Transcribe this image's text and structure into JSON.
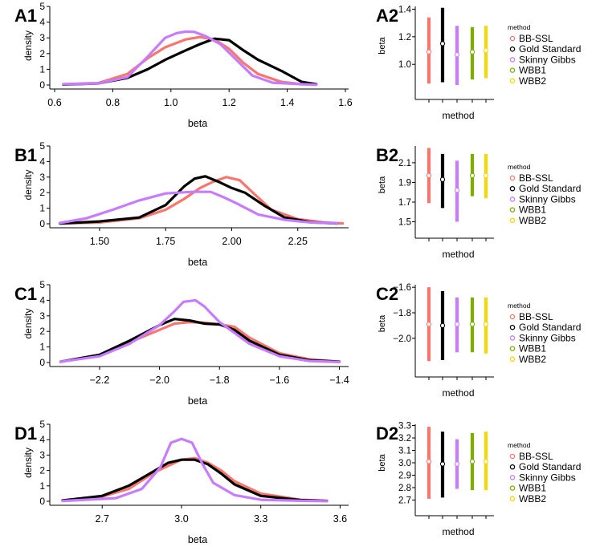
{
  "colors": {
    "BB-SSL": "#F8766D",
    "Gold Standard": "#000000",
    "Skinny Gibbs": "#C77CFF",
    "WBB1": "#7CAE00",
    "WBB2": "#F5D800"
  },
  "legend": {
    "title": "method",
    "entries": [
      "BB-SSL",
      "Gold Standard",
      "Skinny Gibbs",
      "WBB1",
      "WBB2"
    ]
  },
  "chart_data": [
    {
      "panel": "A1",
      "type": "line",
      "xlabel": "beta",
      "ylabel": "density",
      "xlim": [
        0.6,
        1.6
      ],
      "ylim": [
        0,
        5
      ],
      "xticks": [
        "0.6",
        "0.8",
        "1.0",
        "1.2",
        "1.4",
        "1.6"
      ],
      "yticks": [
        "0",
        "1",
        "2",
        "3",
        "4",
        "5"
      ],
      "series": [
        {
          "method": "BB-SSL",
          "x": [
            0.63,
            0.75,
            0.85,
            0.92,
            0.98,
            1.05,
            1.1,
            1.15,
            1.2,
            1.25,
            1.3,
            1.38,
            1.45,
            1.5
          ],
          "y": [
            0.05,
            0.12,
            0.7,
            1.7,
            2.4,
            2.9,
            3.05,
            2.9,
            2.3,
            1.4,
            0.7,
            0.2,
            0.05,
            0.02
          ]
        },
        {
          "method": "Gold Standard",
          "x": [
            0.63,
            0.75,
            0.85,
            0.92,
            0.98,
            1.05,
            1.1,
            1.15,
            1.2,
            1.25,
            1.3,
            1.38,
            1.45,
            1.5
          ],
          "y": [
            0.03,
            0.1,
            0.45,
            1.0,
            1.6,
            2.2,
            2.6,
            2.95,
            2.85,
            2.2,
            1.6,
            0.9,
            0.2,
            0.05
          ]
        },
        {
          "method": "Skinny Gibbs",
          "x": [
            0.63,
            0.75,
            0.85,
            0.92,
            0.98,
            1.02,
            1.05,
            1.08,
            1.12,
            1.17,
            1.22,
            1.28,
            1.35,
            1.45,
            1.5
          ],
          "y": [
            0.05,
            0.1,
            0.5,
            1.8,
            3.0,
            3.3,
            3.4,
            3.38,
            3.1,
            2.6,
            1.7,
            0.6,
            0.15,
            0.05,
            0.02
          ]
        }
      ]
    },
    {
      "panel": "A2",
      "type": "scatter",
      "xlabel": "method",
      "ylabel": "beta",
      "ylim": [
        0.85,
        1.42
      ],
      "yticks": [
        "1.0",
        "1.2",
        "1.4"
      ],
      "ytick_values": [
        1.0,
        1.2,
        1.4
      ],
      "intervals": [
        {
          "method": "BB-SSL",
          "lo": 0.86,
          "hi": 1.34,
          "mid": 1.09
        },
        {
          "method": "Gold Standard",
          "lo": 0.87,
          "hi": 1.41,
          "mid": 1.15
        },
        {
          "method": "Skinny Gibbs",
          "lo": 0.85,
          "hi": 1.28,
          "mid": 1.07
        },
        {
          "method": "WBB1",
          "lo": 0.89,
          "hi": 1.27,
          "mid": 1.09
        },
        {
          "method": "WBB2",
          "lo": 0.9,
          "hi": 1.28,
          "mid": 1.1
        }
      ]
    },
    {
      "panel": "B1",
      "type": "line",
      "xlabel": "beta",
      "ylabel": "density",
      "xlim": [
        1.33,
        2.43
      ],
      "ylim": [
        0,
        5
      ],
      "xticks": [
        "1.50",
        "1.75",
        "2.00",
        "2.25"
      ],
      "xtick_values": [
        1.5,
        1.75,
        2.0,
        2.25
      ],
      "yticks": [
        "0",
        "1",
        "2",
        "3",
        "4",
        "5"
      ],
      "series": [
        {
          "method": "BB-SSL",
          "x": [
            1.35,
            1.5,
            1.65,
            1.75,
            1.82,
            1.88,
            1.93,
            1.98,
            2.03,
            2.08,
            2.15,
            2.25,
            2.35,
            2.42
          ],
          "y": [
            0.02,
            0.08,
            0.35,
            0.9,
            1.6,
            2.3,
            2.7,
            3.0,
            2.8,
            2.0,
            0.9,
            0.3,
            0.08,
            0.02
          ]
        },
        {
          "method": "Gold Standard",
          "x": [
            1.35,
            1.5,
            1.65,
            1.75,
            1.82,
            1.86,
            1.9,
            1.95,
            2.0,
            2.05,
            2.12,
            2.2,
            2.3,
            2.4
          ],
          "y": [
            0.02,
            0.15,
            0.4,
            1.2,
            2.4,
            2.9,
            3.05,
            2.7,
            2.3,
            2.0,
            1.2,
            0.4,
            0.1,
            0.02
          ]
        },
        {
          "method": "Skinny Gibbs",
          "x": [
            1.35,
            1.45,
            1.55,
            1.65,
            1.75,
            1.85,
            1.92,
            1.97,
            2.02,
            2.1,
            2.2,
            2.3,
            2.4
          ],
          "y": [
            0.05,
            0.35,
            0.9,
            1.5,
            1.95,
            2.05,
            2.05,
            1.7,
            1.3,
            0.6,
            0.25,
            0.08,
            0.03
          ]
        }
      ]
    },
    {
      "panel": "B2",
      "type": "scatter",
      "xlabel": "method",
      "ylabel": "beta",
      "ylim": [
        1.48,
        2.27
      ],
      "yticks": [
        "1.5",
        "1.7",
        "1.9",
        "2.1"
      ],
      "ytick_values": [
        1.5,
        1.7,
        1.9,
        2.1
      ],
      "intervals": [
        {
          "method": "BB-SSL",
          "lo": 1.69,
          "hi": 2.25,
          "mid": 1.97
        },
        {
          "method": "Gold Standard",
          "lo": 1.64,
          "hi": 2.19,
          "mid": 1.93
        },
        {
          "method": "Skinny Gibbs",
          "lo": 1.5,
          "hi": 2.12,
          "mid": 1.82
        },
        {
          "method": "WBB1",
          "lo": 1.76,
          "hi": 2.19,
          "mid": 1.97
        },
        {
          "method": "WBB2",
          "lo": 1.74,
          "hi": 2.19,
          "mid": 1.97
        }
      ]
    },
    {
      "panel": "C1",
      "type": "line",
      "xlabel": "beta",
      "ylabel": "density",
      "xlim": [
        -2.35,
        -1.38
      ],
      "ylim": [
        0,
        5
      ],
      "xticks": [
        "−2.2",
        "−2.0",
        "−1.8",
        "−1.6",
        "−1.4"
      ],
      "xtick_values": [
        -2.2,
        -2.0,
        -1.8,
        -1.6,
        -1.4
      ],
      "yticks": [
        "0",
        "1",
        "2",
        "3",
        "4",
        "5"
      ],
      "series": [
        {
          "method": "BB-SSL",
          "x": [
            -2.33,
            -2.2,
            -2.1,
            -2.0,
            -1.95,
            -1.9,
            -1.85,
            -1.8,
            -1.75,
            -1.7,
            -1.6,
            -1.5,
            -1.4
          ],
          "y": [
            0.05,
            0.45,
            1.3,
            2.1,
            2.5,
            2.6,
            2.55,
            2.45,
            2.3,
            1.6,
            0.6,
            0.2,
            0.05
          ]
        },
        {
          "method": "Gold Standard",
          "x": [
            -2.33,
            -2.2,
            -2.1,
            -2.0,
            -1.95,
            -1.9,
            -1.85,
            -1.8,
            -1.75,
            -1.7,
            -1.6,
            -1.5,
            -1.4
          ],
          "y": [
            0.05,
            0.5,
            1.4,
            2.4,
            2.8,
            2.7,
            2.5,
            2.45,
            2.1,
            1.4,
            0.5,
            0.15,
            0.05
          ]
        },
        {
          "method": "Skinny Gibbs",
          "x": [
            -2.33,
            -2.2,
            -2.1,
            -2.0,
            -1.95,
            -1.92,
            -1.88,
            -1.85,
            -1.8,
            -1.75,
            -1.7,
            -1.6,
            -1.5,
            -1.4
          ],
          "y": [
            0.05,
            0.4,
            1.2,
            2.4,
            3.3,
            3.9,
            4.0,
            3.6,
            2.6,
            1.9,
            1.2,
            0.4,
            0.1,
            0.03
          ]
        }
      ]
    },
    {
      "panel": "C2",
      "type": "scatter",
      "xlabel": "method",
      "ylabel": "beta",
      "ylim": [
        -2.19,
        -1.58
      ],
      "yticks": [
        "−2.0",
        "−1.8",
        "−1.6"
      ],
      "ytick_values": [
        -2.0,
        -1.8,
        -1.6
      ],
      "intervals": [
        {
          "method": "BB-SSL",
          "lo": -2.18,
          "hi": -1.6,
          "mid": -1.89
        },
        {
          "method": "Gold Standard",
          "lo": -2.17,
          "hi": -1.63,
          "mid": -1.9
        },
        {
          "method": "Skinny Gibbs",
          "lo": -2.11,
          "hi": -1.68,
          "mid": -1.89
        },
        {
          "method": "WBB1",
          "lo": -2.11,
          "hi": -1.68,
          "mid": -1.89
        },
        {
          "method": "WBB2",
          "lo": -2.12,
          "hi": -1.68,
          "mid": -1.89
        }
      ]
    },
    {
      "panel": "D1",
      "type": "line",
      "xlabel": "beta",
      "ylabel": "density",
      "xlim": [
        2.52,
        3.62
      ],
      "ylim": [
        0,
        5
      ],
      "xticks": [
        "2.7",
        "3.0",
        "3.3",
        "3.6"
      ],
      "xtick_values": [
        2.7,
        3.0,
        3.3,
        3.6
      ],
      "yticks": [
        "0",
        "1",
        "2",
        "3",
        "4",
        "5"
      ],
      "series": [
        {
          "method": "BB-SSL",
          "x": [
            2.55,
            2.7,
            2.8,
            2.9,
            2.95,
            3.0,
            3.05,
            3.1,
            3.15,
            3.2,
            3.3,
            3.45,
            3.55
          ],
          "y": [
            0.05,
            0.3,
            0.8,
            1.9,
            2.3,
            2.7,
            2.8,
            2.5,
            2.0,
            1.3,
            0.5,
            0.1,
            0.03
          ]
        },
        {
          "method": "Gold Standard",
          "x": [
            2.55,
            2.7,
            2.8,
            2.9,
            2.95,
            3.0,
            3.05,
            3.1,
            3.15,
            3.2,
            3.3,
            3.45,
            3.55
          ],
          "y": [
            0.05,
            0.35,
            1.0,
            2.0,
            2.5,
            2.7,
            2.7,
            2.4,
            1.8,
            1.1,
            0.35,
            0.08,
            0.02
          ]
        },
        {
          "method": "Skinny Gibbs",
          "x": [
            2.55,
            2.75,
            2.85,
            2.92,
            2.96,
            3.0,
            3.04,
            3.08,
            3.12,
            3.2,
            3.3,
            3.45,
            3.55
          ],
          "y": [
            0.02,
            0.2,
            0.8,
            2.2,
            3.8,
            4.05,
            3.8,
            2.4,
            1.2,
            0.4,
            0.1,
            0.03,
            0.01
          ]
        }
      ]
    },
    {
      "panel": "D2",
      "type": "scatter",
      "xlabel": "method",
      "ylabel": "beta",
      "ylim": [
        2.69,
        3.31
      ],
      "yticks": [
        "2.7",
        "2.8",
        "2.9",
        "3.0",
        "3.1",
        "3.2",
        "3.3"
      ],
      "ytick_values": [
        2.7,
        2.8,
        2.9,
        3.0,
        3.1,
        3.2,
        3.3
      ],
      "intervals": [
        {
          "method": "BB-SSL",
          "lo": 2.71,
          "hi": 3.29,
          "mid": 3.01
        },
        {
          "method": "Gold Standard",
          "lo": 2.72,
          "hi": 3.25,
          "mid": 2.99
        },
        {
          "method": "Skinny Gibbs",
          "lo": 2.79,
          "hi": 3.19,
          "mid": 2.99
        },
        {
          "method": "WBB1",
          "lo": 2.78,
          "hi": 3.24,
          "mid": 3.01
        },
        {
          "method": "WBB2",
          "lo": 2.78,
          "hi": 3.25,
          "mid": 3.01
        }
      ]
    }
  ]
}
